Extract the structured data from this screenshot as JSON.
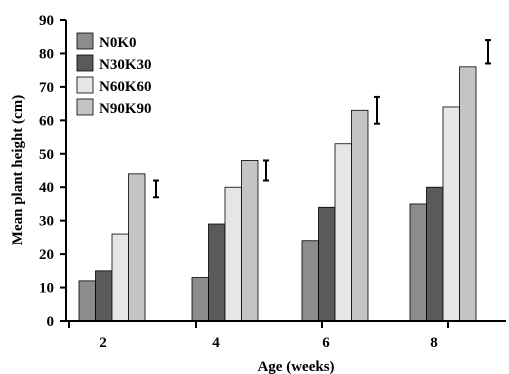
{
  "chart_data": {
    "type": "bar",
    "title": "",
    "xlabel": "Age (weeks)",
    "ylabel": "Mean plant height (cm)",
    "ylim": [
      0,
      90
    ],
    "yticks": [
      0,
      10,
      20,
      30,
      40,
      50,
      60,
      70,
      80,
      90
    ],
    "categories": [
      "2",
      "4",
      "6",
      "8"
    ],
    "series": [
      {
        "name": "N0K0",
        "color": "#8c8c8c",
        "values": [
          12,
          13,
          24,
          35
        ]
      },
      {
        "name": "N30K30",
        "color": "#5a5a5a",
        "values": [
          15,
          29,
          34,
          40
        ]
      },
      {
        "name": "N60K60",
        "color": "#e6e6e6",
        "values": [
          26,
          40,
          53,
          64
        ]
      },
      {
        "name": "N90K90",
        "color": "#c4c4c4",
        "values": [
          44,
          48,
          63,
          76
        ]
      }
    ],
    "error_bars": [
      {
        "category": "2",
        "low": 37,
        "high": 42
      },
      {
        "category": "4",
        "low": 42,
        "high": 48
      },
      {
        "category": "6",
        "low": 59,
        "high": 67
      },
      {
        "category": "8",
        "low": 77,
        "high": 84
      }
    ],
    "legend_position": "top-left",
    "grid": false
  }
}
